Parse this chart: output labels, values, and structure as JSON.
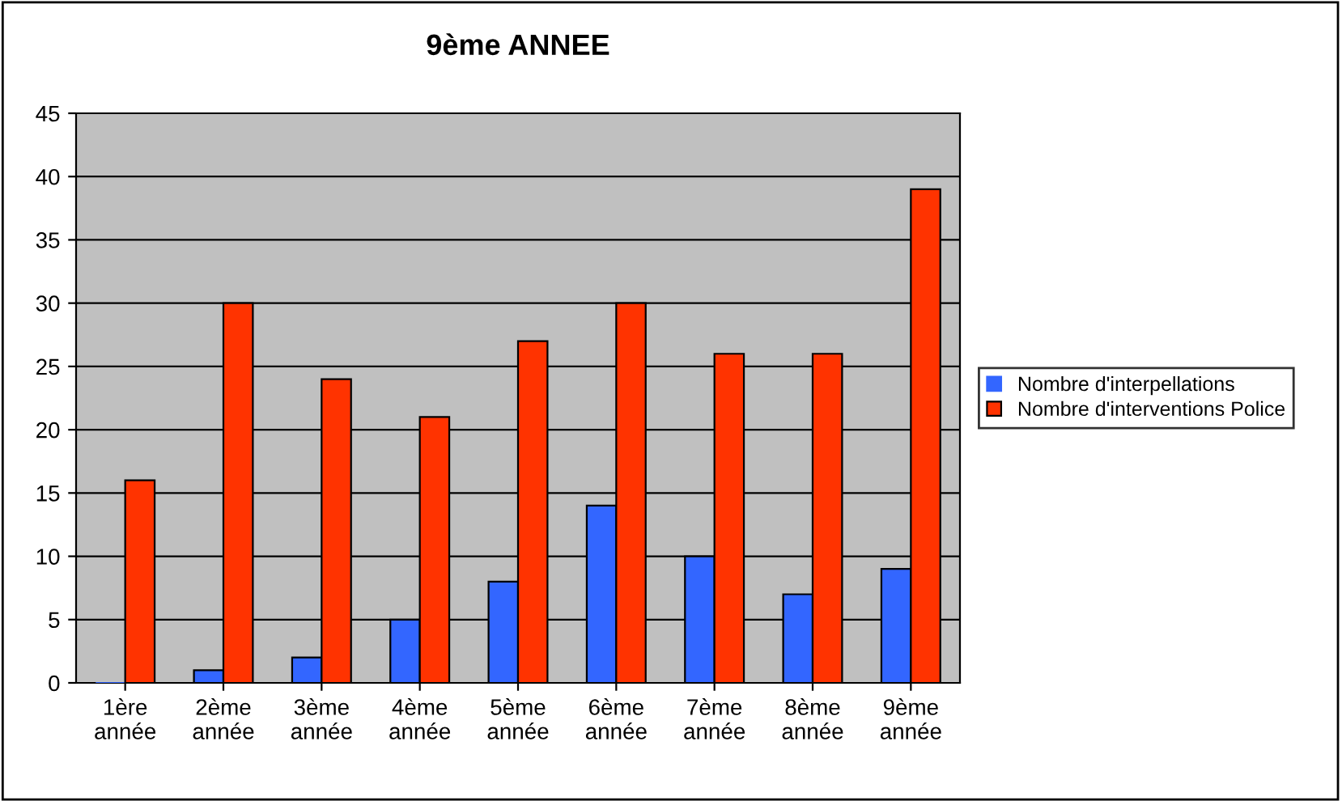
{
  "chart_data": {
    "type": "bar",
    "title": "9ème ANNEE",
    "categories": [
      "1ère\nannée",
      "2ème\nannée",
      "3ème\nannée",
      "4ème\nannée",
      "5ème\nannée",
      "6ème\nannée",
      "7ème\nannée",
      "8ème\nannée",
      "9ème\nannée"
    ],
    "series": [
      {
        "name": "Nombre d'interpellations",
        "color": "#3366ff",
        "values": [
          0,
          1,
          2,
          5,
          8,
          14,
          10,
          7,
          9
        ]
      },
      {
        "name": "Nombre d'interventions Police",
        "color": "#ff3300",
        "values": [
          16,
          30,
          24,
          21,
          27,
          30,
          26,
          26,
          39
        ]
      }
    ],
    "ylim": [
      0,
      45
    ],
    "yticks": [
      0,
      5,
      10,
      15,
      20,
      25,
      30,
      35,
      40,
      45
    ],
    "grid": "y",
    "legend": "right"
  }
}
